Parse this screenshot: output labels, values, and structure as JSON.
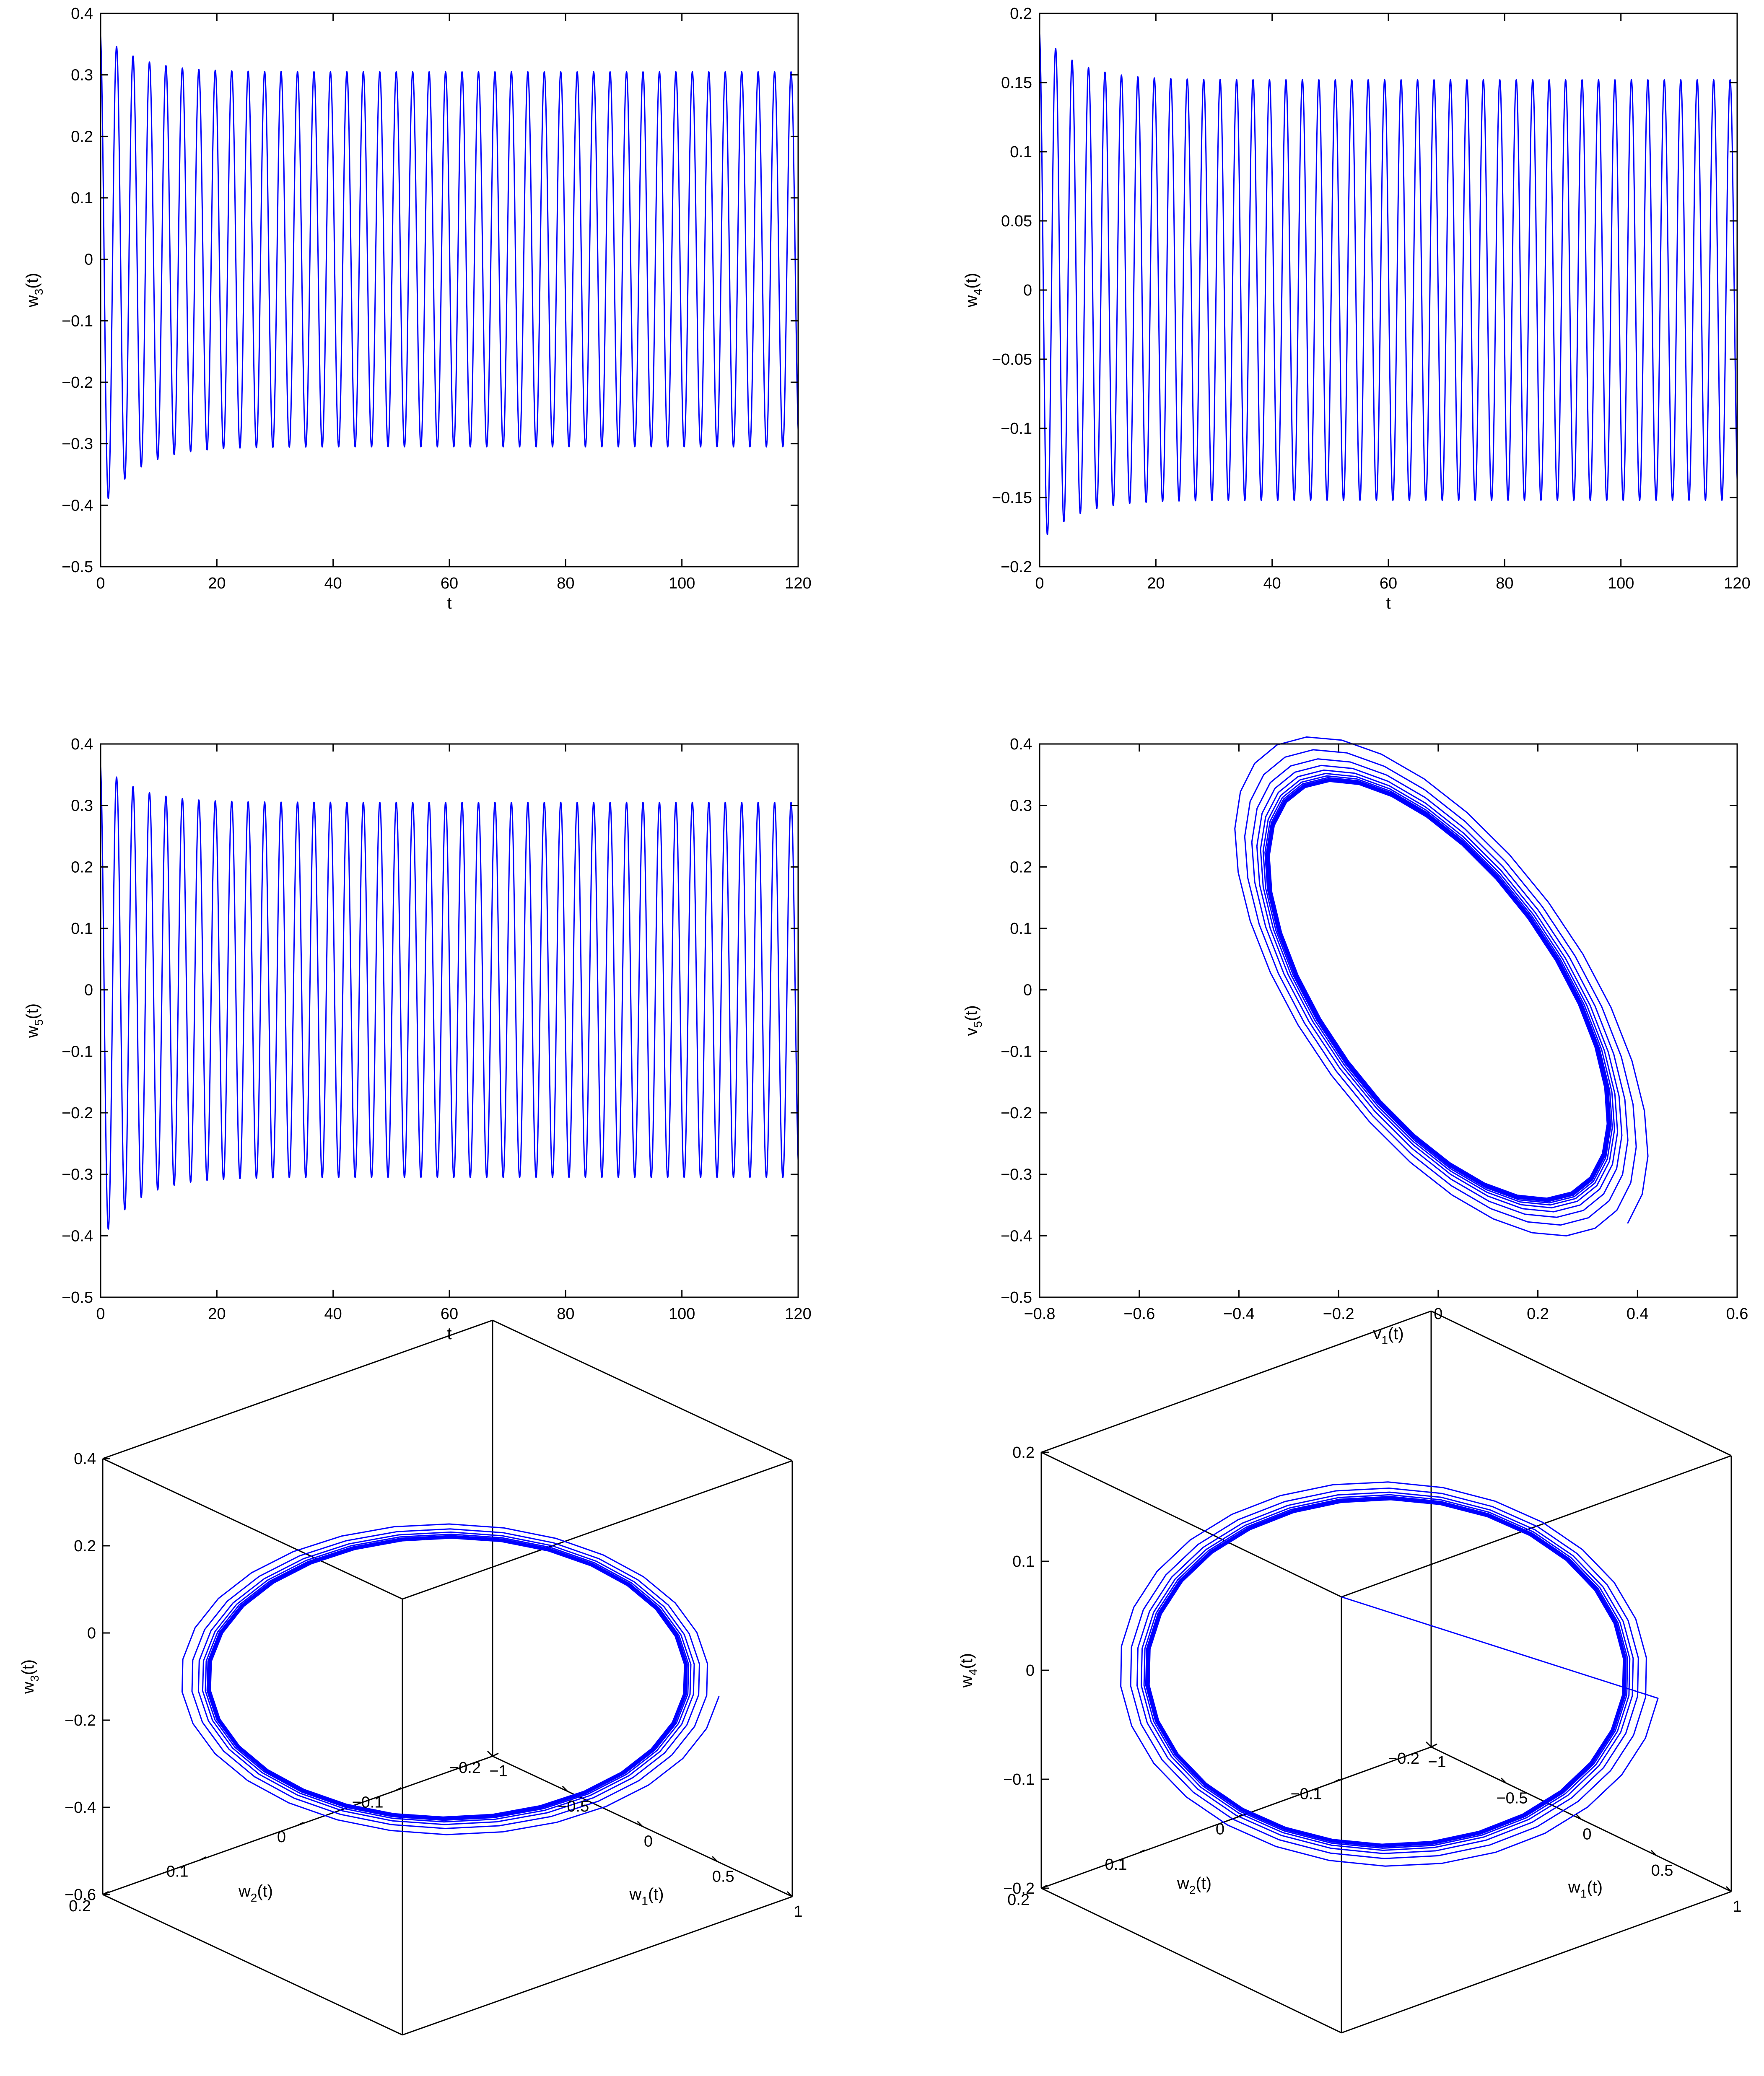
{
  "figure": {
    "line_color": "#0000ff"
  },
  "chart_data": [
    {
      "id": "w3_t",
      "type": "line",
      "xlabel": "t",
      "ylabel": "w",
      "ylabel_sub": "3",
      "ylabel_suffix": "(t)",
      "xlim": [
        0,
        120
      ],
      "ylim": [
        -0.5,
        0.4
      ],
      "xticks": [
        "0",
        "20",
        "40",
        "60",
        "80",
        "100",
        "120"
      ],
      "yticks": [
        "−0.5",
        "−0.4",
        "−0.3",
        "−0.2",
        "−0.1",
        "0",
        "0.1",
        "0.2",
        "0.3",
        "0.4"
      ],
      "series": [
        {
          "kind": "damped_oscillation",
          "initial": 0.3,
          "period": 2.83,
          "steady_amplitude": 0.305,
          "first_peak": 0.37,
          "first_trough": -0.41,
          "decay_time": 6
        }
      ]
    },
    {
      "id": "w4_t",
      "type": "line",
      "xlabel": "t",
      "ylabel": "w",
      "ylabel_sub": "4",
      "ylabel_suffix": "(t)",
      "xlim": [
        0,
        120
      ],
      "ylim": [
        -0.2,
        0.2
      ],
      "xticks": [
        "0",
        "20",
        "40",
        "60",
        "80",
        "100",
        "120"
      ],
      "yticks": [
        "−0.2",
        "−0.15",
        "−0.1",
        "−0.05",
        "0",
        "0.05",
        "0.1",
        "0.15",
        "0.2"
      ],
      "series": [
        {
          "kind": "damped_oscillation",
          "initial": 0.15,
          "period": 2.83,
          "steady_amplitude": 0.152,
          "first_peak": 0.188,
          "first_trough": -0.183,
          "decay_time": 6
        }
      ]
    },
    {
      "id": "w5_t",
      "type": "line",
      "xlabel": "t",
      "ylabel": "w",
      "ylabel_sub": "5",
      "ylabel_suffix": "(t)",
      "xlim": [
        0,
        120
      ],
      "ylim": [
        -0.5,
        0.4
      ],
      "xticks": [
        "0",
        "20",
        "40",
        "60",
        "80",
        "100",
        "120"
      ],
      "yticks": [
        "−0.5",
        "−0.4",
        "−0.3",
        "−0.2",
        "−0.1",
        "0",
        "0.1",
        "0.2",
        "0.3",
        "0.4"
      ],
      "series": [
        {
          "kind": "damped_oscillation",
          "initial": 0.3,
          "period": 2.83,
          "steady_amplitude": 0.305,
          "first_peak": 0.37,
          "first_trough": -0.41,
          "decay_time": 6
        }
      ]
    },
    {
      "id": "v1_v5",
      "type": "line",
      "xlabel": "v",
      "xlabel_sub": "1",
      "xlabel_suffix": "(t)",
      "ylabel": "v",
      "ylabel_sub": "5",
      "ylabel_suffix": "(t)",
      "xlim": [
        -0.8,
        0.6
      ],
      "ylim": [
        -0.5,
        0.4
      ],
      "xticks": [
        "−0.8",
        "−0.6",
        "−0.4",
        "−0.2",
        "0",
        "0.2",
        "0.4",
        "0.6"
      ],
      "yticks": [
        "−0.5",
        "−0.4",
        "−0.3",
        "−0.2",
        "−0.1",
        "0",
        "0.1",
        "0.2",
        "0.3",
        "0.4"
      ],
      "series": [
        {
          "kind": "phase_spiral",
          "center": [
            0,
            0
          ],
          "steady_u": 0.43,
          "steady_v": 0.21,
          "angle_deg": -45,
          "initial_scale": 1.25
        }
      ]
    },
    {
      "id": "w1_w2_w3",
      "type": "line3d",
      "xlabel": "w",
      "xlabel_sub": "1",
      "xlabel_suffix": "(t)",
      "ylabel": "w",
      "ylabel_sub": "2",
      "ylabel_suffix": "(t)",
      "zlabel": "w",
      "zlabel_sub": "3",
      "zlabel_suffix": "(t)",
      "xlim": [
        -1,
        1
      ],
      "ylim": [
        -0.2,
        0.2
      ],
      "zlim": [
        -0.6,
        0.4
      ],
      "xticks": [
        "−1",
        "−0.5",
        "0",
        "0.5",
        "1"
      ],
      "yticks": [
        "−0.2",
        "−0.1",
        "0",
        "0.1",
        "0.2"
      ],
      "zticks": [
        "−0.6",
        "−0.4",
        "−0.2",
        "0",
        "0.2",
        "0.4"
      ],
      "series": [
        {
          "kind": "limit_cycle_3d",
          "amp_w1": 0.6,
          "amp_w2": 0.15,
          "amp_w": 0.3,
          "initial_scale": 1.15
        }
      ]
    },
    {
      "id": "w1_w2_w4",
      "type": "line3d",
      "xlabel": "w",
      "xlabel_sub": "1",
      "xlabel_suffix": "(t)",
      "ylabel": "w",
      "ylabel_sub": "2",
      "ylabel_suffix": "(t)",
      "zlabel": "w",
      "zlabel_sub": "4",
      "zlabel_suffix": "(t)",
      "xlim": [
        -1,
        1
      ],
      "ylim": [
        -0.2,
        0.2
      ],
      "zlim": [
        -0.2,
        0.2
      ],
      "xticks": [
        "−1",
        "−0.5",
        "0",
        "0.5",
        "1"
      ],
      "yticks": [
        "−0.2",
        "−0.1",
        "0",
        "0.1",
        "0.2"
      ],
      "zticks": [
        "−0.2",
        "−0.1",
        "0",
        "0.1",
        "0.2"
      ],
      "series": [
        {
          "kind": "limit_cycle_3d",
          "amp_w1": 0.6,
          "amp_w2": 0.15,
          "amp_w": 0.15,
          "initial_scale": 1.15,
          "transient_start": [
            1.0,
            0.2,
            0.2
          ]
        }
      ]
    }
  ]
}
